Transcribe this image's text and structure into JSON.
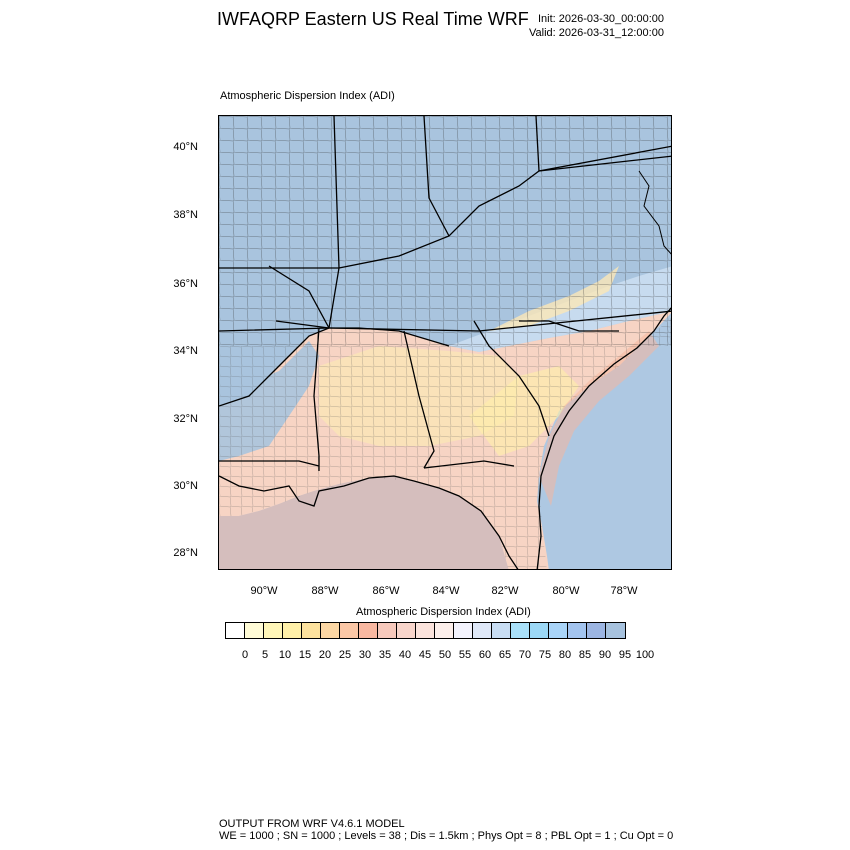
{
  "header": {
    "title": "IWFAQRP Eastern US Real Time WRF",
    "init": "Init: 2026-03-30_00:00:00",
    "valid": "Valid: 2026-03-31_12:00:00"
  },
  "plot_title": "Atmospheric Dispersion Index   (ADI)",
  "map": {
    "lat_labels": [
      "40°N",
      "38°N",
      "36°N",
      "34°N",
      "32°N",
      "30°N",
      "28°N"
    ],
    "lon_labels": [
      "90°W",
      "88°W",
      "86°W",
      "84°W",
      "82°W",
      "80°W",
      "78°W"
    ],
    "colors": {
      "high_adi": "#a9c4de",
      "mid_adi": "#c7dbef",
      "low_adi": "#f7d4c4",
      "very_low_adi": "#fbe7b6",
      "ocean": "#aec8e2",
      "coast_plume": "#f5b69e",
      "borders": "#000000"
    }
  },
  "colorbar": {
    "title": "Atmospheric Dispersion Index  (ADI)",
    "colors": [
      "#ffffff",
      "#fffbd6",
      "#fff6b8",
      "#fff0a8",
      "#fde29e",
      "#fcd7a4",
      "#fbc7a6",
      "#f9b8a1",
      "#f7c9bc",
      "#f8d5cb",
      "#fbe3dc",
      "#fcefeb",
      "#f3f3fd",
      "#dfe8f8",
      "#c8ddf3",
      "#a9e0f9",
      "#9cd8f6",
      "#a9d4f8",
      "#a3c4ef",
      "#9cb5e2",
      "#a7c2de"
    ],
    "ticks": [
      "0",
      "5",
      "10",
      "15",
      "20",
      "25",
      "30",
      "35",
      "40",
      "45",
      "50",
      "55",
      "60",
      "65",
      "70",
      "75",
      "80",
      "85",
      "90",
      "95",
      "100"
    ]
  },
  "footer": {
    "line1": "OUTPUT FROM WRF V4.6.1 MODEL",
    "line2": "WE = 1000 ; SN = 1000 ; Levels = 38 ; Dis = 1.5km ; Phys Opt = 8 ; PBL Opt = 1 ; Cu Opt = 0"
  }
}
